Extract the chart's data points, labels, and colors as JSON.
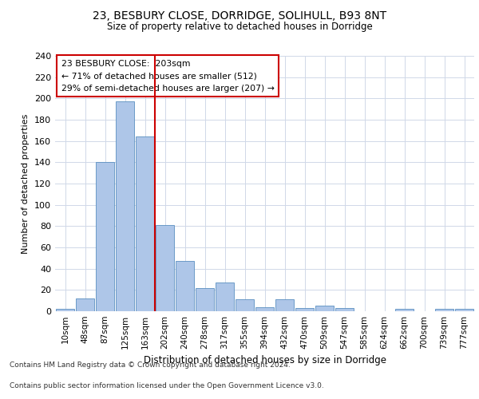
{
  "title1": "23, BESBURY CLOSE, DORRIDGE, SOLIHULL, B93 8NT",
  "title2": "Size of property relative to detached houses in Dorridge",
  "xlabel": "Distribution of detached houses by size in Dorridge",
  "ylabel": "Number of detached properties",
  "bar_labels": [
    "10sqm",
    "48sqm",
    "87sqm",
    "125sqm",
    "163sqm",
    "202sqm",
    "240sqm",
    "278sqm",
    "317sqm",
    "355sqm",
    "394sqm",
    "432sqm",
    "470sqm",
    "509sqm",
    "547sqm",
    "585sqm",
    "624sqm",
    "662sqm",
    "700sqm",
    "739sqm",
    "777sqm"
  ],
  "bar_values": [
    2,
    12,
    140,
    197,
    164,
    81,
    47,
    22,
    27,
    11,
    4,
    11,
    3,
    5,
    3,
    0,
    0,
    2,
    0,
    2,
    2
  ],
  "bar_color": "#aec6e8",
  "bar_edge_color": "#5a8fc0",
  "property_label": "23 BESBURY CLOSE:  203sqm",
  "annotation_line1": "← 71% of detached houses are smaller (512)",
  "annotation_line2": "29% of semi-detached houses are larger (207) →",
  "vline_color": "#cc0000",
  "annotation_box_edge": "#cc0000",
  "ylim": [
    0,
    240
  ],
  "yticks": [
    0,
    20,
    40,
    60,
    80,
    100,
    120,
    140,
    160,
    180,
    200,
    220,
    240
  ],
  "footer_line1": "Contains HM Land Registry data © Crown copyright and database right 2024.",
  "footer_line2": "Contains public sector information licensed under the Open Government Licence v3.0.",
  "vline_x_index": 5,
  "background_color": "#ffffff",
  "grid_color": "#d0d8e8"
}
